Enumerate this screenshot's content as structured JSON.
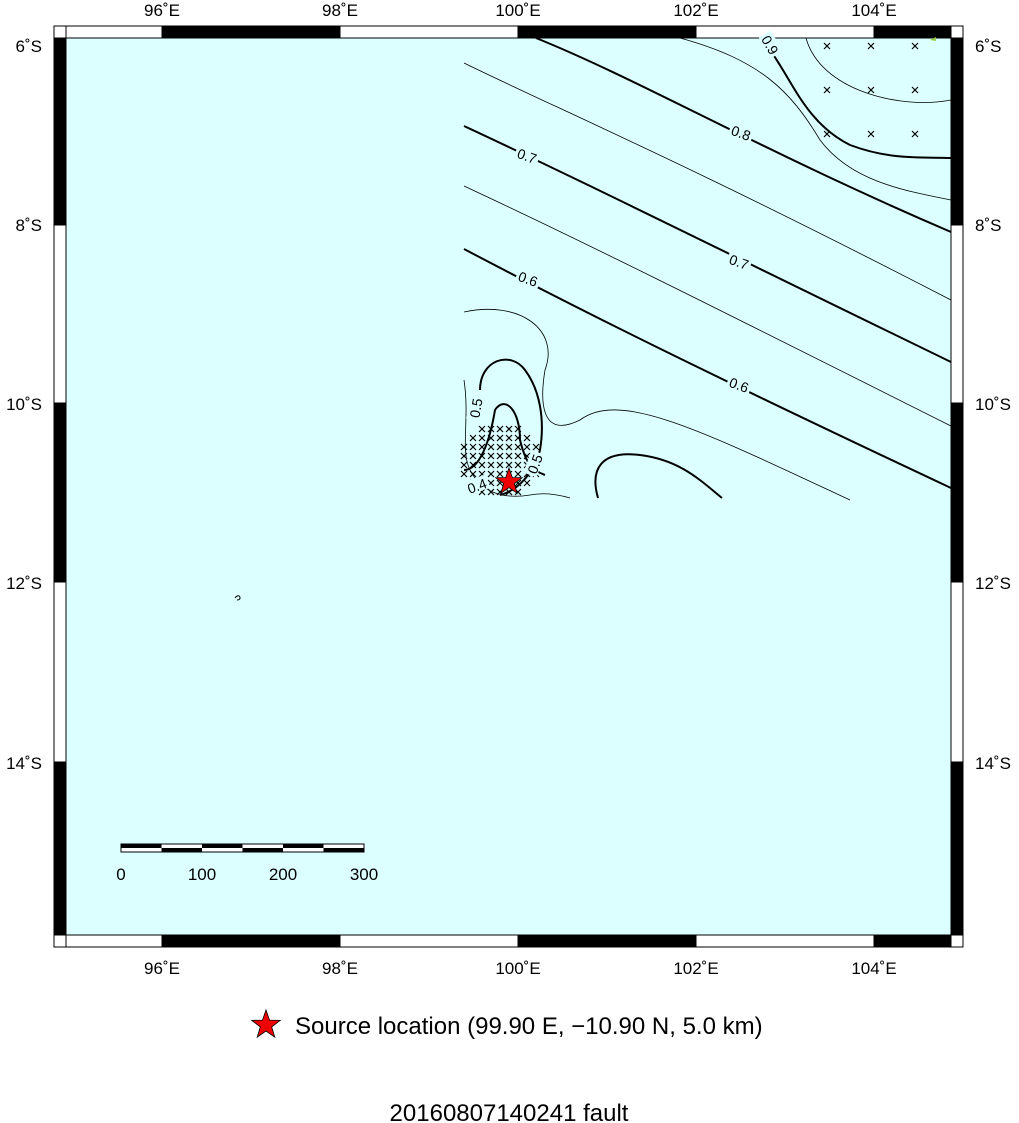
{
  "map": {
    "x_labels": [
      "96˚E",
      "98˚E",
      "100˚E",
      "102˚E",
      "104˚E"
    ],
    "y_labels": [
      "6˚S",
      "8˚S",
      "10˚S",
      "12˚S",
      "14˚S"
    ],
    "contour_labels": [
      "0.9",
      "0.8",
      "0.7",
      "0.7",
      "0.6",
      "0.6",
      "0.5",
      "0.5",
      "0.4"
    ],
    "scale_labels": [
      "0",
      "100",
      "200",
      "300"
    ],
    "legend": "Source location (99.90 E, −10.90 N, 5.0 km)",
    "title": "20160807140241 fault"
  }
}
